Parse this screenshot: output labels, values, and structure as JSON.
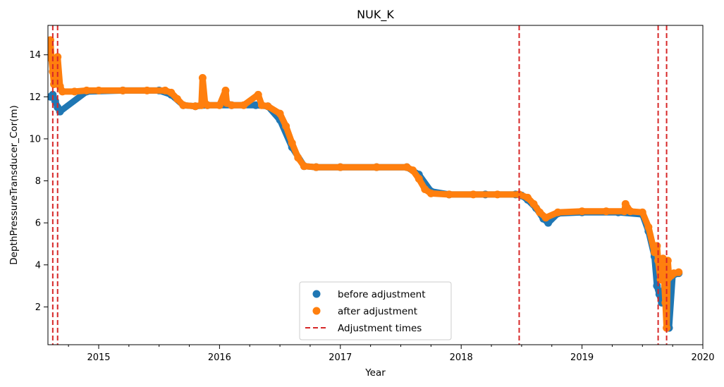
{
  "chart_data": {
    "type": "scatter",
    "title": "NUK_K",
    "xlabel": "Year",
    "ylabel": "DepthPressureTransducer_Cor(m)",
    "xlim": [
      2014.58,
      2020.0
    ],
    "ylim": [
      0.2,
      15.4
    ],
    "x_ticks": [
      2015,
      2016,
      2017,
      2018,
      2019,
      2020
    ],
    "y_ticks": [
      2,
      4,
      6,
      8,
      10,
      12,
      14
    ],
    "grid": false,
    "legend_position": "lower-center",
    "series": [
      {
        "name": "before adjustment",
        "color": "#1f77b4",
        "marker": "circle",
        "x": [
          2014.6,
          2014.62,
          2014.64,
          2014.66,
          2014.68,
          2014.9,
          2015.2,
          2015.5,
          2015.6,
          2015.7,
          2015.8,
          2015.9,
          2016.1,
          2016.3,
          2016.4,
          2016.5,
          2016.6,
          2016.7,
          2016.8,
          2017.0,
          2017.3,
          2017.55,
          2017.65,
          2017.75,
          2017.9,
          2018.2,
          2018.45,
          2018.5,
          2018.55,
          2018.62,
          2018.68,
          2018.72,
          2018.8,
          2019.0,
          2019.3,
          2019.5,
          2019.55,
          2019.6,
          2019.62,
          2019.64,
          2019.66,
          2019.7,
          2019.72,
          2019.75,
          2019.8
        ],
        "y": [
          12.0,
          12.1,
          11.8,
          11.5,
          11.3,
          12.25,
          12.3,
          12.3,
          12.1,
          11.6,
          11.55,
          11.6,
          11.6,
          11.6,
          11.55,
          10.9,
          9.6,
          8.7,
          8.65,
          8.65,
          8.65,
          8.65,
          8.3,
          7.5,
          7.35,
          7.35,
          7.35,
          7.3,
          7.1,
          6.7,
          6.2,
          6.0,
          6.45,
          6.5,
          6.5,
          6.4,
          5.6,
          4.4,
          3.0,
          2.6,
          2.2,
          3.6,
          1.0,
          3.5,
          3.6
        ]
      },
      {
        "name": "after adjustment",
        "color": "#ff7f0e",
        "marker": "circle",
        "x": [
          2014.6,
          2014.61,
          2014.62,
          2014.63,
          2014.64,
          2014.66,
          2014.68,
          2014.7,
          2014.8,
          2014.9,
          2015.0,
          2015.2,
          2015.4,
          2015.55,
          2015.6,
          2015.65,
          2015.7,
          2015.8,
          2015.85,
          2015.86,
          2015.88,
          2015.9,
          2016.0,
          2016.05,
          2016.06,
          2016.1,
          2016.2,
          2016.32,
          2016.35,
          2016.4,
          2016.5,
          2016.55,
          2016.6,
          2016.65,
          2016.7,
          2016.8,
          2017.0,
          2017.3,
          2017.55,
          2017.6,
          2017.65,
          2017.7,
          2017.75,
          2017.9,
          2018.1,
          2018.3,
          2018.48,
          2018.55,
          2018.6,
          2018.65,
          2018.7,
          2018.8,
          2019.0,
          2019.2,
          2019.35,
          2019.36,
          2019.4,
          2019.5,
          2019.55,
          2019.6,
          2019.62,
          2019.63,
          2019.65,
          2019.67,
          2019.69,
          2019.7,
          2019.71,
          2019.72,
          2019.74,
          2019.76,
          2019.8
        ],
        "y": [
          14.7,
          13.8,
          13.2,
          12.6,
          13.6,
          13.9,
          12.5,
          12.25,
          12.25,
          12.3,
          12.3,
          12.3,
          12.3,
          12.3,
          12.2,
          11.9,
          11.6,
          11.55,
          11.6,
          12.9,
          11.7,
          11.6,
          11.6,
          12.3,
          11.7,
          11.6,
          11.6,
          12.1,
          11.6,
          11.55,
          11.2,
          10.6,
          9.8,
          9.1,
          8.7,
          8.65,
          8.65,
          8.65,
          8.65,
          8.5,
          8.1,
          7.6,
          7.4,
          7.35,
          7.35,
          7.35,
          7.35,
          7.2,
          6.9,
          6.5,
          6.25,
          6.5,
          6.55,
          6.55,
          6.55,
          6.9,
          6.55,
          6.5,
          5.8,
          4.6,
          4.9,
          4.2,
          3.3,
          4.3,
          2.2,
          1.0,
          4.2,
          3.4,
          3.5,
          3.6,
          3.65
        ]
      },
      {
        "name": "Adjustment times",
        "color": "#d62728",
        "line_style": "dashed",
        "x": [
          2014.62,
          2014.66,
          2018.48,
          2019.63,
          2019.7
        ]
      }
    ]
  }
}
